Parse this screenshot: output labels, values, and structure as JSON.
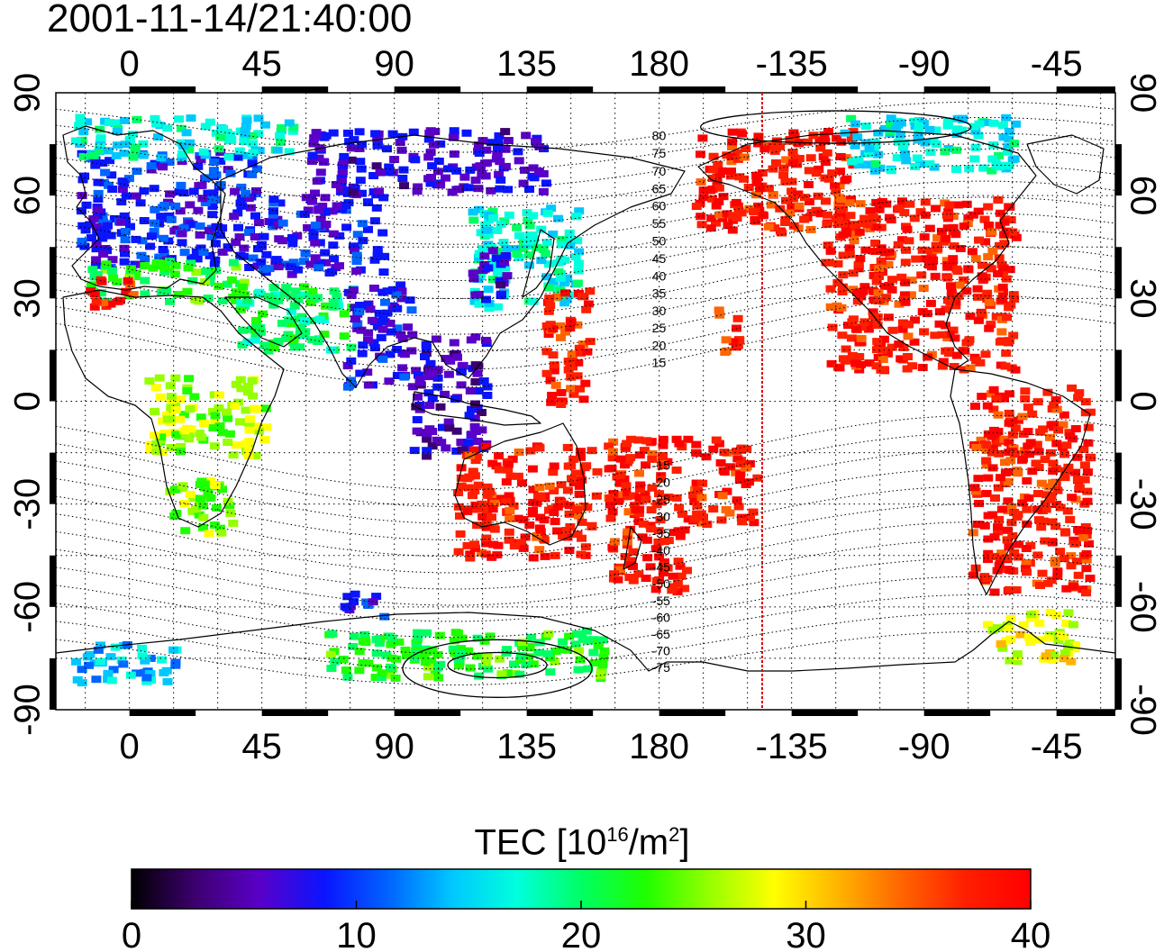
{
  "title": "2001-11-14/21:40:00",
  "colorbar": {
    "label_main": "TEC  [10",
    "label_sup1": "16",
    "label_mid": "/m",
    "label_sup2": "2",
    "label_end": "]",
    "min": 0,
    "max": 40,
    "ticks": [
      "0",
      "10",
      "20",
      "30",
      "40"
    ]
  },
  "map": {
    "lon_ticks_top": [
      "0",
      "45",
      "90",
      "135",
      "180",
      "-135",
      "-90",
      "-45"
    ],
    "lon_ticks_bottom": [
      "0",
      "45",
      "90",
      "135",
      "180",
      "-135",
      "-90",
      "-45"
    ],
    "lat_ticks": [
      "90",
      "60",
      "30",
      "0",
      "-30",
      "-60",
      "-90"
    ],
    "lon_range": [
      -25,
      335
    ],
    "lat_range": [
      -90,
      90
    ],
    "grid": true,
    "terminator_lon": 215,
    "terminator_color": "#e00000",
    "contour_labels": [
      "80",
      "75",
      "70",
      "65",
      "60",
      "55",
      "50",
      "45",
      "40",
      "35",
      "30",
      "25",
      "20",
      "15",
      "-15",
      "-20",
      "-25",
      "-30",
      "-35",
      "-40",
      "-45",
      "-50",
      "-55",
      "-60",
      "-65",
      "-70",
      "-75"
    ],
    "colormap": [
      "#000000",
      "#3d0070",
      "#5a00c8",
      "#0a14ff",
      "#0064ff",
      "#00c8ff",
      "#00ffdc",
      "#00ff64",
      "#1eff00",
      "#96ff00",
      "#ffff00",
      "#ffb400",
      "#ff6400",
      "#ff1e00",
      "#ff0000"
    ],
    "tec_regions": [
      {
        "name": "europe",
        "lon": [
          -18,
          42
        ],
        "lat": [
          40,
          74
        ],
        "tec": 9
      },
      {
        "name": "europe-south",
        "lon": [
          -15,
          38
        ],
        "lat": [
          30,
          42
        ],
        "tec": 22
      },
      {
        "name": "iberia-red",
        "lon": [
          -15,
          0
        ],
        "lat": [
          28,
          37
        ],
        "tec": 38
      },
      {
        "name": "north-atlantic",
        "lon": [
          -20,
          55
        ],
        "lat": [
          72,
          84
        ],
        "tec": 17
      },
      {
        "name": "russia",
        "lon": [
          42,
          85
        ],
        "lat": [
          38,
          62
        ],
        "tec": 8
      },
      {
        "name": "siberia-north",
        "lon": [
          60,
          140
        ],
        "lat": [
          62,
          80
        ],
        "tec": 7
      },
      {
        "name": "japan-china",
        "lon": [
          115,
          152
        ],
        "lat": [
          28,
          58
        ],
        "tec": 17
      },
      {
        "name": "korea-blue",
        "lon": [
          115,
          128
        ],
        "lat": [
          30,
          45
        ],
        "tec": 7
      },
      {
        "name": "middle-east",
        "lon": [
          35,
          75
        ],
        "lat": [
          15,
          35
        ],
        "tec": 20
      },
      {
        "name": "india",
        "lon": [
          72,
          95
        ],
        "lat": [
          5,
          35
        ],
        "tec": 8
      },
      {
        "name": "southeast-asia",
        "lon": [
          95,
          120
        ],
        "lat": [
          -15,
          20
        ],
        "tec": 6
      },
      {
        "name": "pacific-west",
        "lon": [
          140,
          155
        ],
        "lat": [
          0,
          35
        ],
        "tec": 37
      },
      {
        "name": "africa-west",
        "lon": [
          5,
          45
        ],
        "lat": [
          -15,
          8
        ],
        "tec": 26
      },
      {
        "name": "africa-south",
        "lon": [
          12,
          35
        ],
        "lat": [
          -38,
          -22
        ],
        "tec": 25
      },
      {
        "name": "australia",
        "lon": [
          110,
          158
        ],
        "lat": [
          -45,
          -12
        ],
        "tec": 38
      },
      {
        "name": "new-zealand",
        "lon": [
          162,
          188
        ],
        "lat": [
          -55,
          -35
        ],
        "tec": 38
      },
      {
        "name": "pacific-south",
        "lon": [
          160,
          212
        ],
        "lat": [
          -35,
          -10
        ],
        "tec": 38
      },
      {
        "name": "hawaii",
        "lon": [
          198,
          206
        ],
        "lat": [
          15,
          28
        ],
        "tec": 38
      },
      {
        "name": "alaska",
        "lon": [
          190,
          245
        ],
        "lat": [
          50,
          80
        ],
        "tec": 38
      },
      {
        "name": "north-america",
        "lon": [
          235,
          300
        ],
        "lat": [
          10,
          60
        ],
        "tec": 38
      },
      {
        "name": "canada-arctic",
        "lon": [
          240,
          300
        ],
        "lat": [
          68,
          84
        ],
        "tec": 16
      },
      {
        "name": "south-america",
        "lon": [
          285,
          325
        ],
        "lat": [
          -55,
          5
        ],
        "tec": 38
      },
      {
        "name": "antarctic-west",
        "lon": [
          -20,
          15
        ],
        "lat": [
          -82,
          -70
        ],
        "tec": 14
      },
      {
        "name": "antarctic-ring",
        "lon": [
          65,
          160
        ],
        "lat": [
          -80,
          -66
        ],
        "tec": 22
      },
      {
        "name": "southern-ocean",
        "lon": [
          70,
          85
        ],
        "lat": [
          -62,
          -55
        ],
        "tec": 9
      },
      {
        "name": "patagonia",
        "lon": [
          290,
          320
        ],
        "lat": [
          -75,
          -60
        ],
        "tec": 28
      }
    ]
  }
}
